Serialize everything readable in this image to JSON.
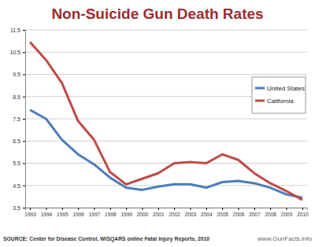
{
  "chart_data": {
    "type": "line",
    "title": "Non-Suicide Gun Death Rates",
    "source": "SOURCE: Center for Disease Control, WISQARS online Fatal Injury Reports, 2010",
    "credit": "www.GunFacts.info",
    "categories": [
      "1993",
      "1994",
      "1995",
      "1996",
      "1997",
      "1998",
      "1999",
      "2000",
      "2001",
      "2002",
      "2003",
      "2004",
      "2005",
      "2006",
      "2007",
      "2008",
      "2009",
      "2010"
    ],
    "series": [
      {
        "name": "United States",
        "color": "#4a7ebb",
        "values": [
          7.9,
          7.5,
          6.55,
          5.9,
          5.45,
          4.85,
          4.4,
          4.3,
          4.45,
          4.55,
          4.55,
          4.4,
          4.65,
          4.7,
          4.6,
          4.4,
          4.1,
          3.95
        ]
      },
      {
        "name": "California",
        "color": "#be4b48",
        "values": [
          10.95,
          10.15,
          9.1,
          7.4,
          6.55,
          5.1,
          4.55,
          4.8,
          5.05,
          5.5,
          5.55,
          5.5,
          5.9,
          5.65,
          5.05,
          4.6,
          4.25,
          3.85
        ]
      }
    ],
    "ylim": [
      3.5,
      11.5
    ],
    "yticks": [
      3.5,
      4.5,
      5.5,
      6.5,
      7.5,
      8.5,
      9.5,
      10.5,
      11.5
    ],
    "grid": true,
    "legend": "right"
  }
}
